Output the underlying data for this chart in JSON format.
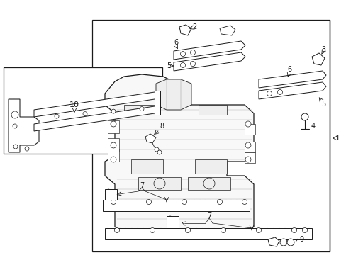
{
  "fig_width": 4.89,
  "fig_height": 3.6,
  "dpi": 100,
  "bg": "#ffffff",
  "lc": "#1a1a1a",
  "lw_main": 0.8,
  "lw_thin": 0.4,
  "lw_hatch": 0.35
}
